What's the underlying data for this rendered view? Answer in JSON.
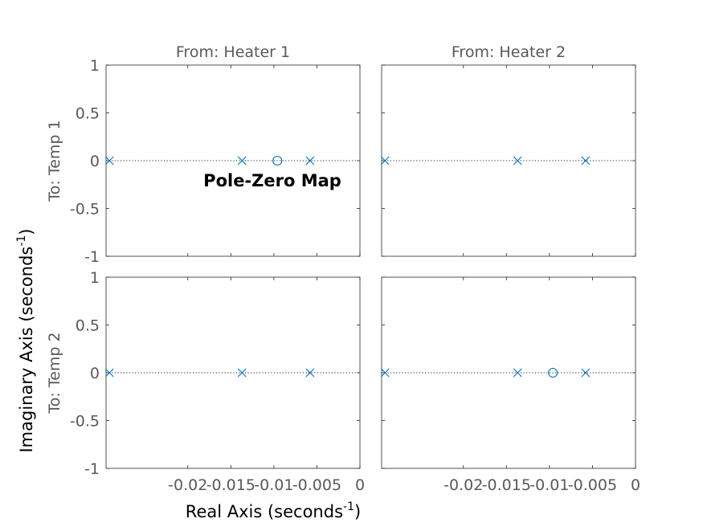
{
  "chart_data": {
    "type": "scatter",
    "title": "Pole-Zero Map",
    "xlabel": "Real Axis (seconds",
    "xlabel_exponent": "-1",
    "xlabel_suffix": ")",
    "ylabel": "Imaginary Axis (seconds",
    "ylabel_exponent": "-1",
    "ylabel_suffix": ")",
    "xlim": [
      -0.0295,
      0
    ],
    "ylim": [
      -1,
      1
    ],
    "x_ticks": [
      -0.02,
      -0.015,
      -0.01,
      -0.005,
      0
    ],
    "x_tick_labels": [
      "-0.02",
      "-0.015",
      "-0.01",
      "-0.005",
      "0"
    ],
    "y_ticks": [
      1,
      0.5,
      0,
      -0.5,
      -1
    ],
    "y_tick_labels": [
      "1",
      "0.5",
      "0",
      "-0.5",
      "-1"
    ],
    "grid": false,
    "marker_color": "#0072BD",
    "column_titles": [
      "From: Heater 1",
      "From: Heater 2"
    ],
    "row_labels": [
      "To: Temp 1",
      "To: Temp 2"
    ],
    "subplots": [
      {
        "row": 0,
        "col": 0,
        "poles": [
          -0.0291,
          -0.0137,
          -0.0058
        ],
        "zeros": [
          -0.0096
        ]
      },
      {
        "row": 0,
        "col": 1,
        "poles": [
          -0.0291,
          -0.0137,
          -0.0058
        ],
        "zeros": []
      },
      {
        "row": 1,
        "col": 0,
        "poles": [
          -0.0291,
          -0.0137,
          -0.0058
        ],
        "zeros": []
      },
      {
        "row": 1,
        "col": 1,
        "poles": [
          -0.0291,
          -0.0137,
          -0.0058
        ],
        "zeros": [
          -0.0096
        ]
      }
    ]
  }
}
